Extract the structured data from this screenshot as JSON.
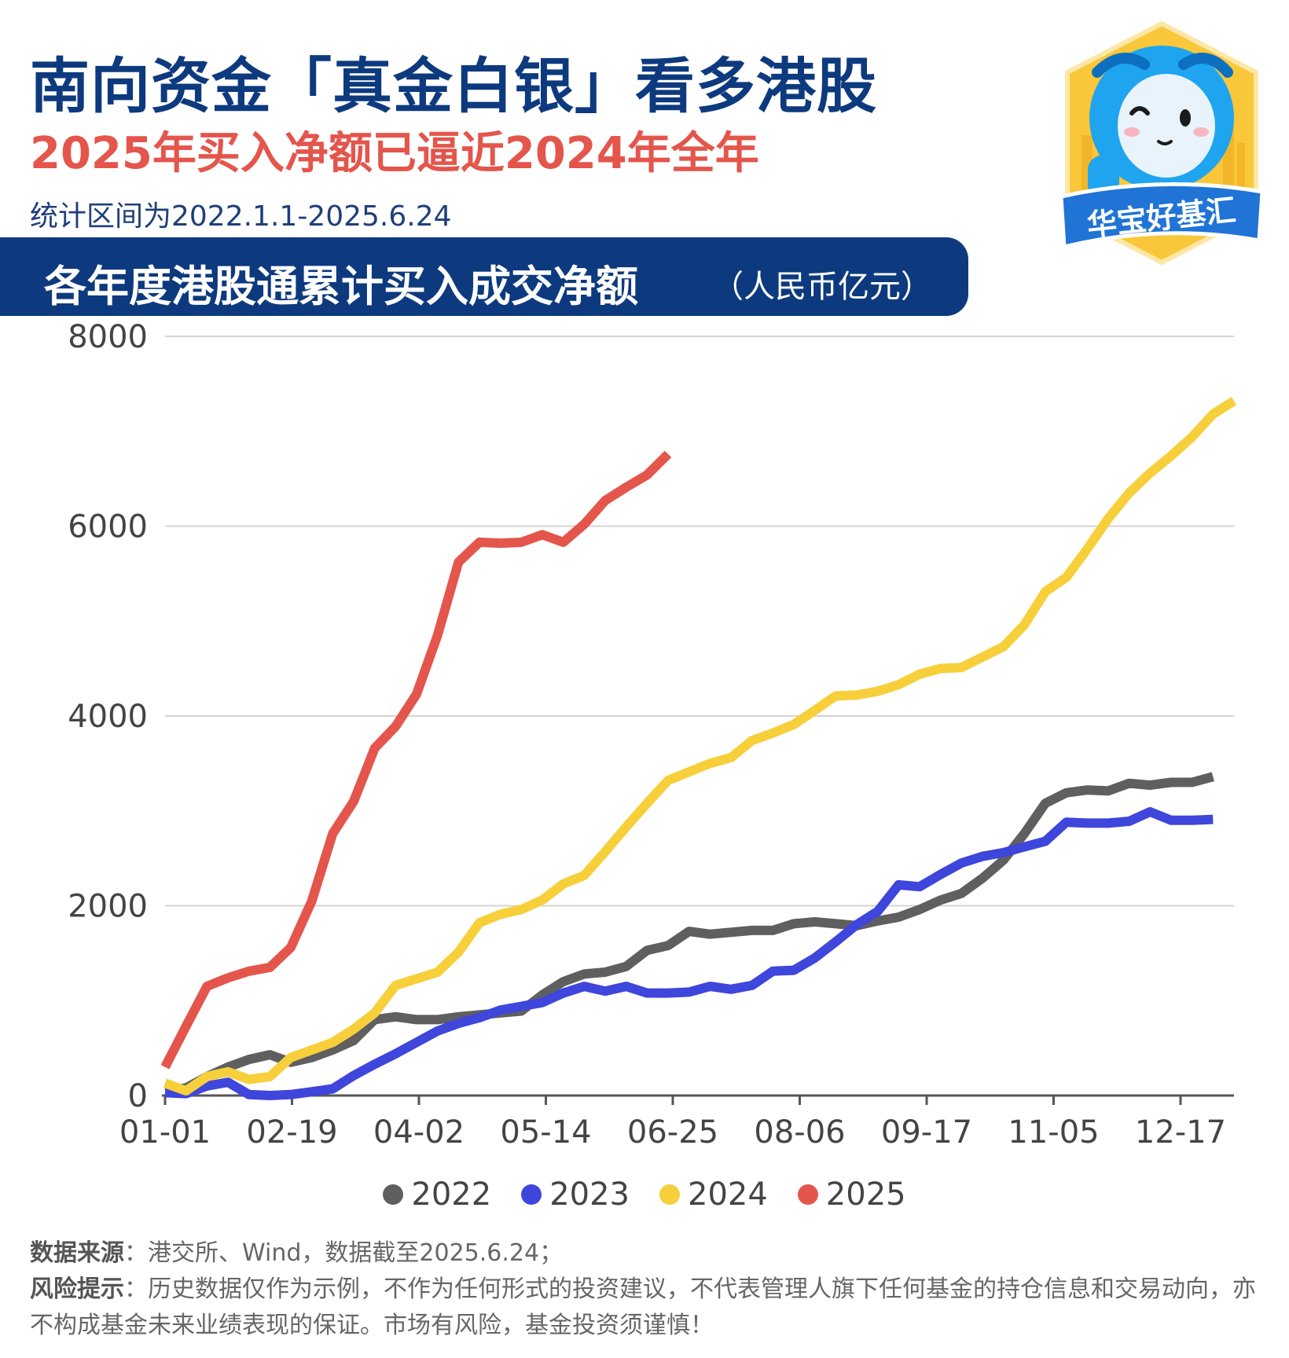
{
  "header": {
    "title": "南向资金「真金白银」看多港股",
    "subtitle": "2025年买入净额已逼近2024年全年",
    "range": "统计区间为2022.1.1-2025.6.24"
  },
  "banner": {
    "title": "各年度港股通累计买入成交净额",
    "unit": "（人民币亿元）"
  },
  "logo": {
    "text": "华宝好基汇"
  },
  "chart_data": {
    "type": "line",
    "x_ticks": [
      "01-01",
      "02-19",
      "04-02",
      "05-14",
      "06-25",
      "08-06",
      "09-17",
      "11-05",
      "12-17"
    ],
    "y_ticks": [
      "0",
      "2000",
      "4000",
      "6000",
      "8000"
    ],
    "ylim": [
      0,
      8000
    ],
    "xlim": [
      0,
      51
    ],
    "grid": true,
    "legend": "bottom",
    "series": [
      {
        "name": "2022",
        "color": "#5f5f5f",
        "values": [
          50,
          80,
          200,
          300,
          380,
          430,
          350,
          400,
          480,
          580,
          800,
          830,
          800,
          800,
          830,
          850,
          870,
          890,
          1060,
          1200,
          1280,
          1300,
          1360,
          1530,
          1580,
          1730,
          1700,
          1720,
          1740,
          1740,
          1810,
          1830,
          1810,
          1790,
          1840,
          1880,
          1960,
          2060,
          2130,
          2290,
          2480,
          2760,
          3080,
          3190,
          3220,
          3210,
          3290,
          3270,
          3300,
          3300,
          3360
        ]
      },
      {
        "name": "2023",
        "color": "#3f46dc",
        "values": [
          30,
          20,
          100,
          140,
          10,
          0,
          10,
          40,
          70,
          210,
          330,
          440,
          560,
          680,
          760,
          820,
          900,
          940,
          980,
          1080,
          1150,
          1100,
          1150,
          1080,
          1080,
          1090,
          1150,
          1120,
          1160,
          1310,
          1320,
          1450,
          1620,
          1800,
          1940,
          2220,
          2200,
          2330,
          2450,
          2520,
          2560,
          2620,
          2680,
          2880,
          2870,
          2870,
          2890,
          2990,
          2900,
          2900,
          2910
        ]
      },
      {
        "name": "2024",
        "color": "#f7cf3a",
        "values": [
          130,
          50,
          200,
          250,
          170,
          200,
          400,
          480,
          560,
          700,
          870,
          1160,
          1230,
          1300,
          1510,
          1820,
          1910,
          1960,
          2060,
          2230,
          2320,
          2570,
          2830,
          3080,
          3320,
          3410,
          3500,
          3560,
          3740,
          3820,
          3910,
          4060,
          4210,
          4220,
          4260,
          4330,
          4440,
          4500,
          4510,
          4620,
          4730,
          4960,
          5310,
          5460,
          5760,
          6080,
          6350,
          6560,
          6740,
          6940,
          7180,
          7320
        ]
      },
      {
        "name": "2025",
        "color": "#e4554c",
        "values": [
          300,
          730,
          1150,
          1240,
          1310,
          1350,
          1560,
          2050,
          2760,
          3100,
          3660,
          3890,
          4230,
          4850,
          5620,
          5830,
          5820,
          5830,
          5910,
          5830,
          6020,
          6270,
          6410,
          6540,
          6760
        ]
      }
    ]
  },
  "footer": {
    "source_label": "数据来源",
    "source_text": "：港交所、Wind，数据截至2025.6.24；",
    "risk_label": "风险提示",
    "risk_text": "：历史数据仅作为示例，不作为任何形式的投资建议，不代表管理人旗下任何基金的持仓信息和交易动向，亦不构成基金未来业绩表现的保证。市场有风险，基金投资须谨慎！"
  }
}
